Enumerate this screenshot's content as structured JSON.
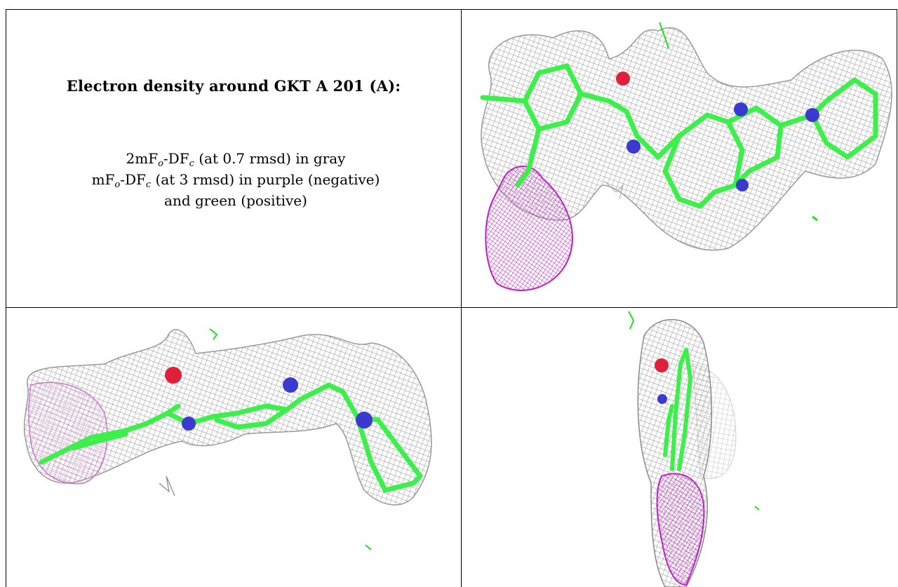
{
  "legend": {
    "title": "Electron density around GKT A 201 (A):",
    "line1": {
      "pre": "2mF",
      "sub1": "o",
      "mid": "-DF",
      "sub2": "c",
      "post": " (at 0.7 rmsd) in gray"
    },
    "line2": {
      "pre": "mF",
      "sub1": "o",
      "mid": "-DF",
      "sub2": "c",
      "post": " (at 3 rmsd) in purple (negative)"
    },
    "line3": "and green (positive)"
  },
  "colors": {
    "mesh_gray": "#8c8c8c",
    "negative_density": "#c21fc4",
    "positive_density": "#22e022",
    "carbon": "#3cf04a",
    "nitrogen": "#3a3ad0",
    "oxygen": "#e0203a"
  }
}
